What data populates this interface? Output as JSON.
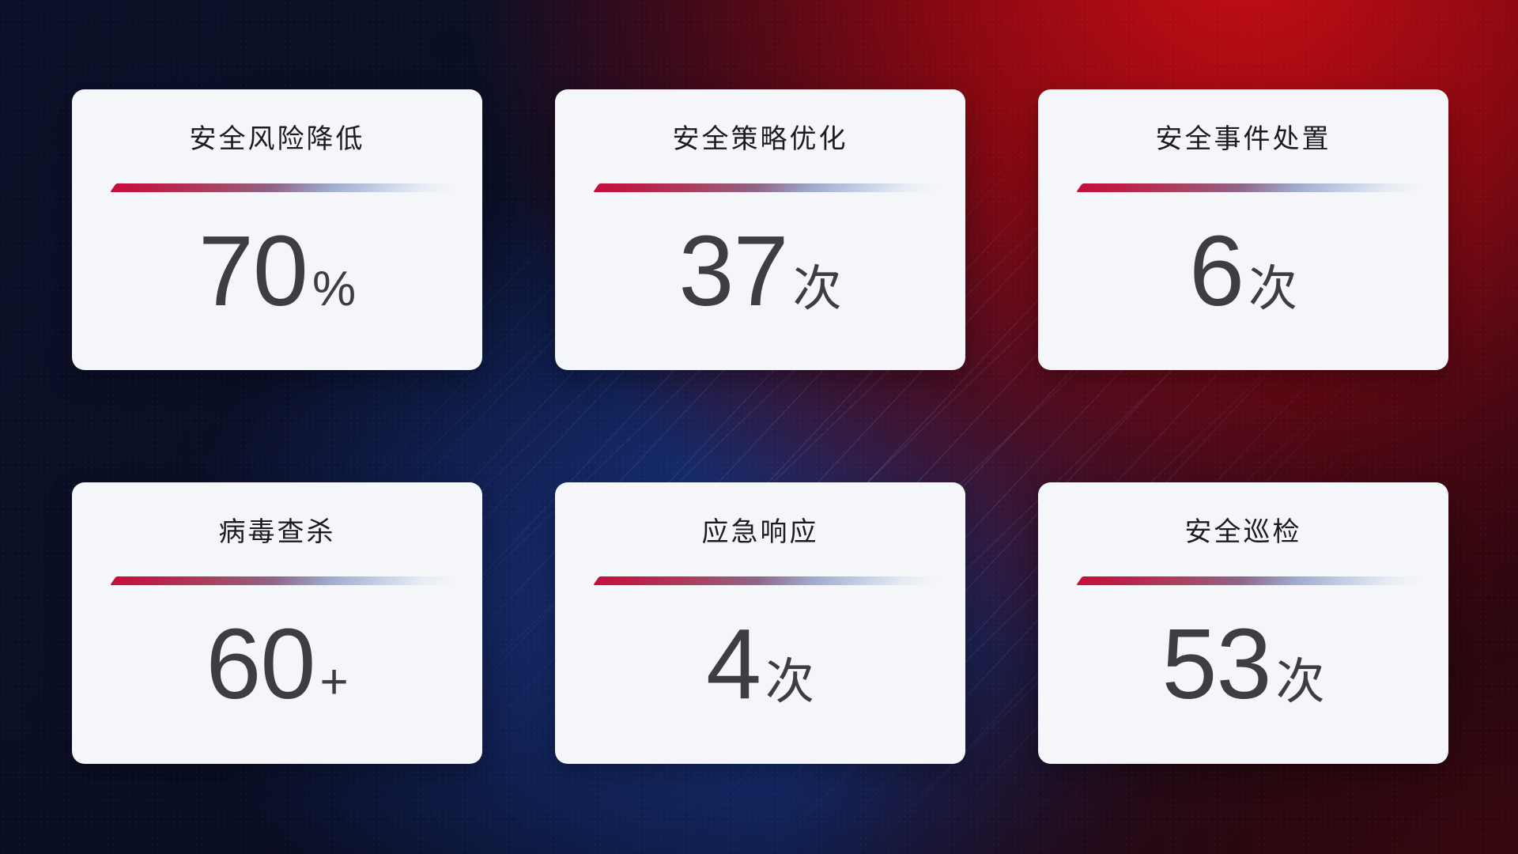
{
  "cards": [
    {
      "title": "安全风险降低",
      "value": "70",
      "unit": "%"
    },
    {
      "title": "安全策略优化",
      "value": "37",
      "unit": "次"
    },
    {
      "title": "安全事件处置",
      "value": "6",
      "unit": "次"
    },
    {
      "title": "病毒查杀",
      "value": "60",
      "unit": "+"
    },
    {
      "title": "应急响应",
      "value": "4",
      "unit": "次"
    },
    {
      "title": "安全巡检",
      "value": "53",
      "unit": "次"
    }
  ],
  "colors": {
    "card_background": "#f5f6f9",
    "title_text": "#1b1b20",
    "value_text": "#3d3d42",
    "divider_start_red": "#c50f3d",
    "divider_mid_purple": "#8f6588",
    "divider_end_blue": "#c3cfe4",
    "background_navy": "#0b1028",
    "background_blue_glow": "#1c3a8e",
    "background_red": "#c90d14",
    "background_maroon": "#3a070f"
  }
}
